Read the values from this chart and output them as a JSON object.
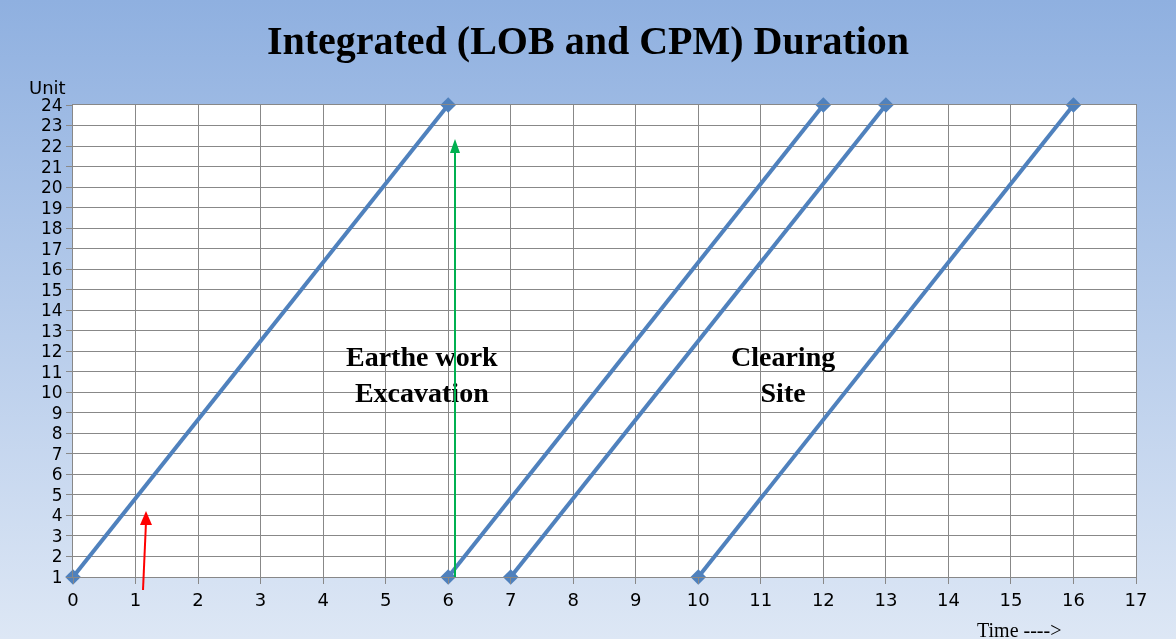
{
  "chart_data": {
    "type": "line",
    "title": "Integrated (LOB and CPM) Duration",
    "xlabel": "Time ---->",
    "ylabel": "Unit",
    "series": [
      {
        "x": [
          0,
          6
        ],
        "values": [
          1,
          24
        ],
        "color": "#4f81bd"
      },
      {
        "x": [
          6,
          12
        ],
        "values": [
          1,
          24
        ],
        "color": "#4f81bd"
      },
      {
        "x": [
          7,
          13
        ],
        "values": [
          1,
          24
        ],
        "color": "#4f81bd"
      },
      {
        "x": [
          10,
          16
        ],
        "values": [
          1,
          24
        ],
        "color": "#4f81bd"
      }
    ],
    "xlim": [
      0,
      17
    ],
    "xticks": [
      0,
      1,
      2,
      3,
      4,
      5,
      6,
      7,
      8,
      9,
      10,
      11,
      12,
      13,
      14,
      15,
      16,
      17
    ],
    "ylim": [
      1,
      24
    ],
    "yticks": [
      1,
      2,
      3,
      4,
      5,
      6,
      7,
      8,
      9,
      10,
      11,
      12,
      13,
      14,
      15,
      16,
      17,
      18,
      19,
      20,
      21,
      22,
      23,
      24
    ],
    "annotations": [
      "Earthe work\nExcavation",
      "Clearing\nSite"
    ],
    "grid": true,
    "marker": "diamond",
    "line_style": "solid"
  }
}
